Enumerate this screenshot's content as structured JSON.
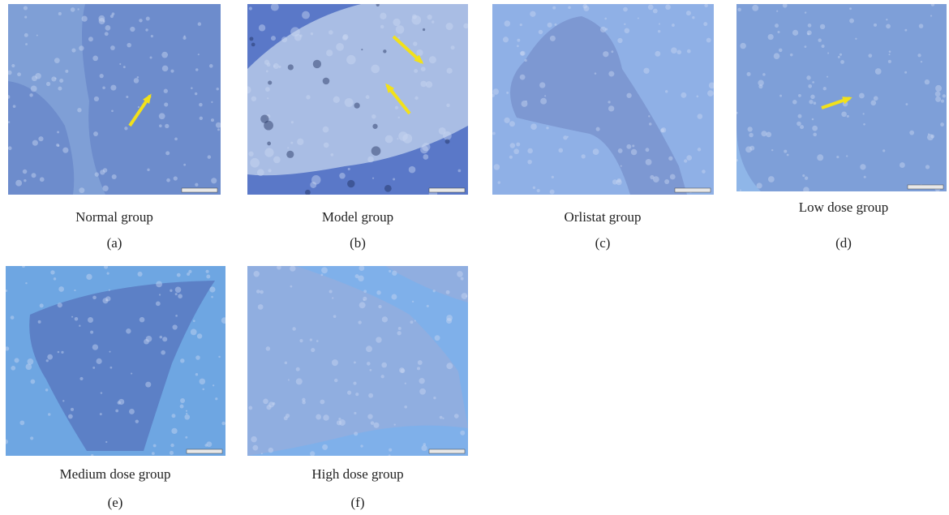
{
  "figure": {
    "panels": [
      {
        "caption": "Normal group",
        "letter": "(a)"
      },
      {
        "caption": "Model group",
        "letter": "(b)"
      },
      {
        "caption": "Orlistat group",
        "letter": "(c)"
      },
      {
        "caption": "Low dose group",
        "letter": "(d)"
      },
      {
        "caption": "Medium dose group",
        "letter": "(e)"
      },
      {
        "caption": "High dose group",
        "letter": "(f)"
      }
    ]
  }
}
